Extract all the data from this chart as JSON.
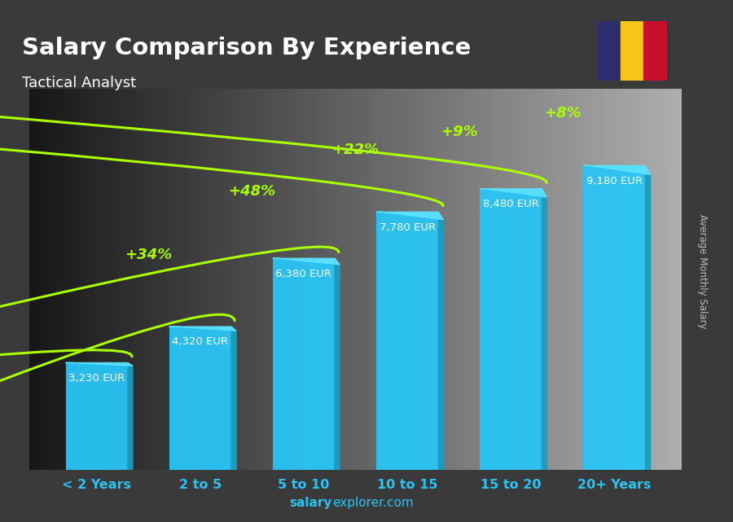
{
  "title": "Salary Comparison By Experience",
  "subtitle": "Tactical Analyst",
  "categories": [
    "< 2 Years",
    "2 to 5",
    "5 to 10",
    "10 to 15",
    "15 to 20",
    "20+ Years"
  ],
  "values": [
    3230,
    4320,
    6380,
    7780,
    8480,
    9180
  ],
  "value_labels": [
    "3,230 EUR",
    "4,320 EUR",
    "6,380 EUR",
    "7,780 EUR",
    "8,480 EUR",
    "9,180 EUR"
  ],
  "pct_changes": [
    "+34%",
    "+48%",
    "+22%",
    "+9%",
    "+8%"
  ],
  "bar_color": "#29C5F6",
  "bar_side_color": "#1a9fc0",
  "bar_top_color": "#5de0ff",
  "pct_color": "#aaff00",
  "label_color": "#ffffff",
  "title_color": "#ffffff",
  "subtitle_color": "#ffffff",
  "xlabel_color": "#29C5F6",
  "bg_color": "#3a3a3a",
  "ylabel_text": "Average Monthly Salary",
  "watermark_bold": "salary",
  "watermark_normal": "explorer.com",
  "flag_colors": [
    "#2d2d6e",
    "#f5c518",
    "#c8102e"
  ],
  "ylim": [
    0,
    11500
  ],
  "bar_width": 0.6
}
